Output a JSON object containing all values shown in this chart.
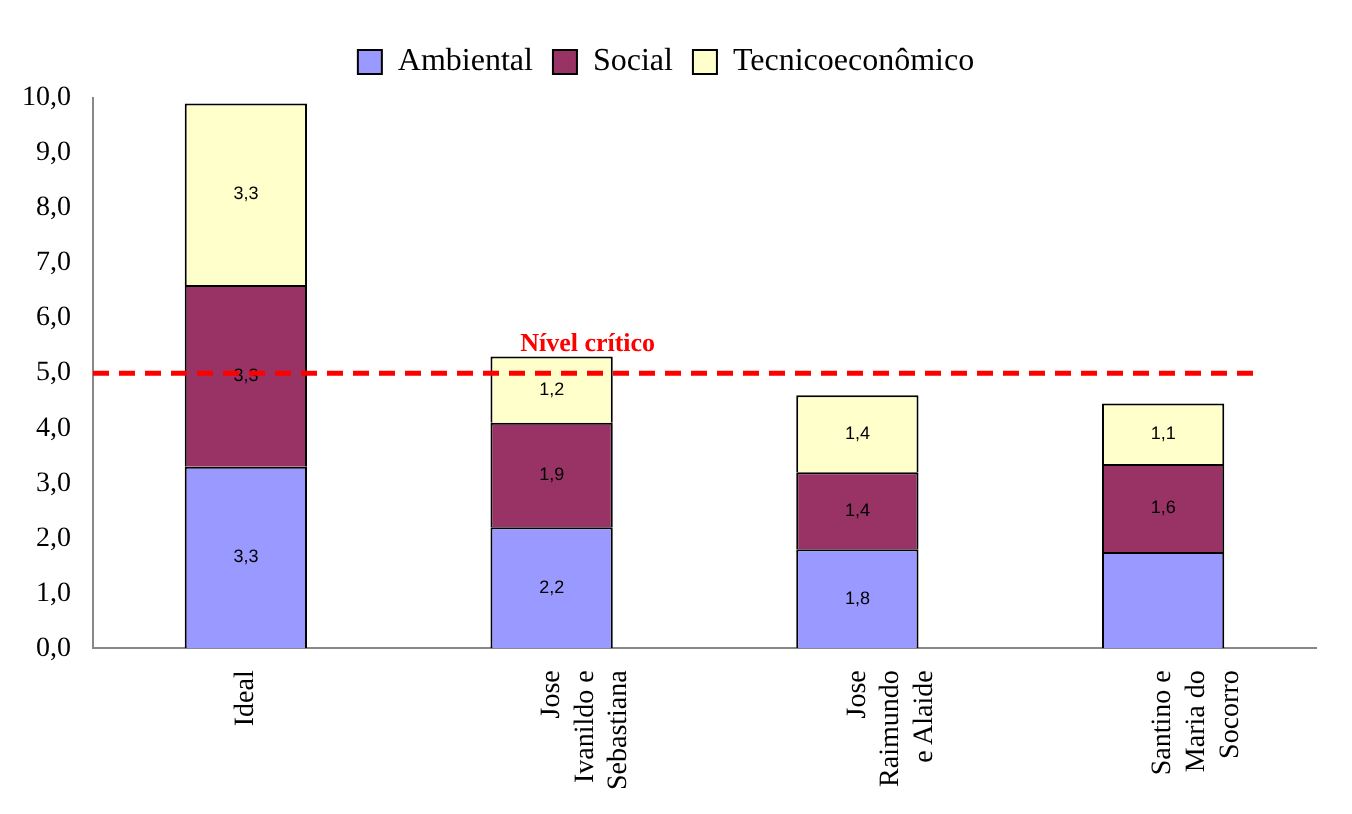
{
  "chart_data": {
    "type": "bar",
    "stacked": true,
    "categories": [
      "Ideal",
      "Jose\nIvanildo e\nSebastiana",
      "Jose\nRaimundo\ne Alaide",
      "Santino e\nMaria do\nSocorro"
    ],
    "series": [
      {
        "name": "Ambiental",
        "color": "#9999ff",
        "values": [
          3.3,
          2.2,
          1.8,
          1.75
        ],
        "value_labels": [
          "3,3",
          "2,2",
          "1,8",
          null
        ]
      },
      {
        "name": "Social",
        "color": "#993366",
        "values": [
          3.3,
          1.9,
          1.4,
          1.6
        ],
        "value_labels": [
          "3,3",
          "1,9",
          "1,4",
          "1,6"
        ]
      },
      {
        "name": "Tecnicoeconômico",
        "color": "#ffffcc",
        "values": [
          3.3,
          1.2,
          1.4,
          1.1
        ],
        "value_labels": [
          "3,3",
          "1,2",
          "1,4",
          "1,1"
        ]
      }
    ],
    "ylim": [
      0,
      10
    ],
    "yticks": [
      {
        "value": 0,
        "label": "0,0"
      },
      {
        "value": 1,
        "label": "1,0"
      },
      {
        "value": 2,
        "label": "2,0"
      },
      {
        "value": 3,
        "label": "3,0"
      },
      {
        "value": 4,
        "label": "4,0"
      },
      {
        "value": 5,
        "label": "5,0"
      },
      {
        "value": 6,
        "label": "6,0"
      },
      {
        "value": 7,
        "label": "7,0"
      },
      {
        "value": 8,
        "label": "8,0"
      },
      {
        "value": 9,
        "label": "9,0"
      },
      {
        "value": 10,
        "label": "10,0"
      }
    ],
    "ref_lines": [
      {
        "axis": "y",
        "value": 5,
        "label": "Nível crítico",
        "color": "#ff0000",
        "line_style": "dashed"
      }
    ],
    "legend": "top",
    "grid": false
  }
}
